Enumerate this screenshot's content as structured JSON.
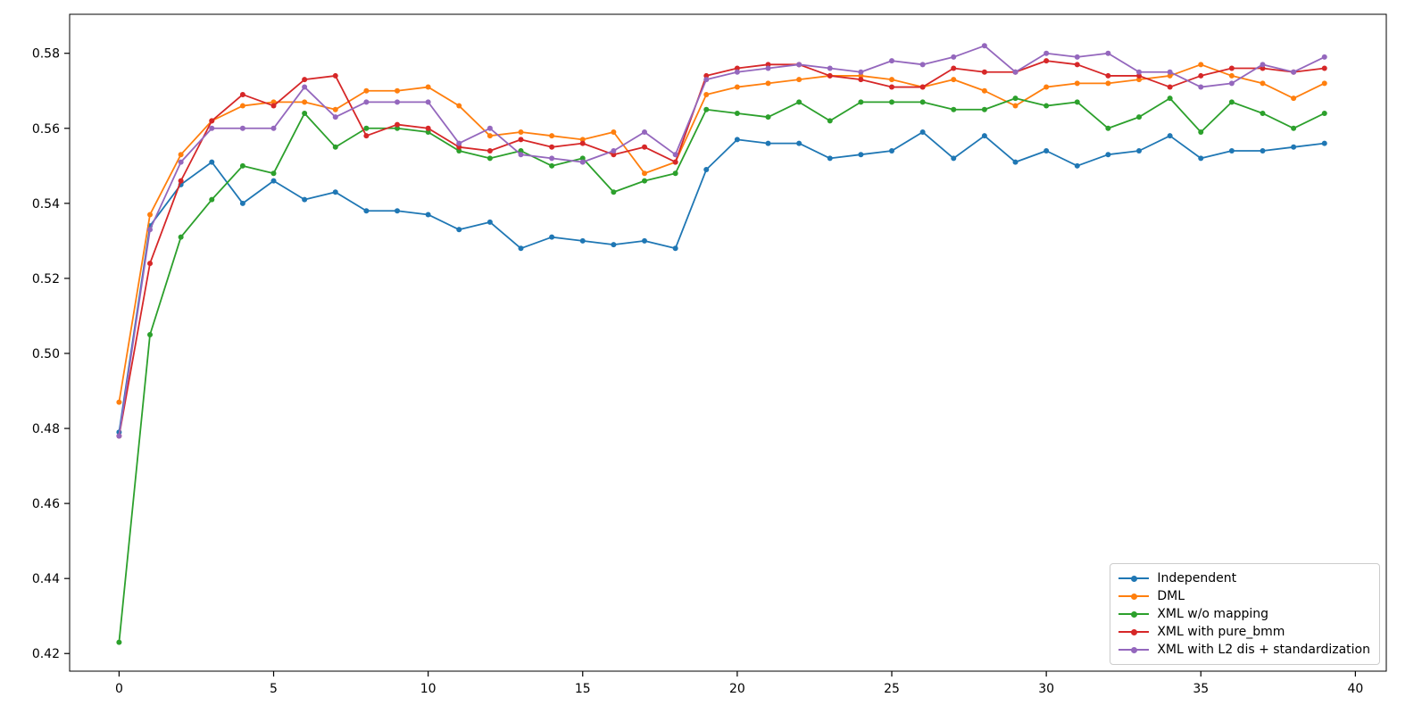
{
  "figure": {
    "background": "#ffffff",
    "axis_color": "#000000"
  },
  "chart_data": {
    "type": "line",
    "title": "",
    "xlabel": "",
    "ylabel": "",
    "grid": false,
    "marker": "circle",
    "xlim": [
      -1.6,
      41.0
    ],
    "ylim": [
      0.4153,
      0.5904
    ],
    "x_ticks": [
      0,
      5,
      10,
      15,
      20,
      25,
      30,
      35,
      40
    ],
    "y_ticks": [
      0.42,
      0.44,
      0.46,
      0.48,
      0.5,
      0.52,
      0.54,
      0.56,
      0.58
    ],
    "legend": {
      "position": "lower right"
    },
    "x": [
      0,
      1,
      2,
      3,
      4,
      5,
      6,
      7,
      8,
      9,
      10,
      11,
      12,
      13,
      14,
      15,
      16,
      17,
      18,
      19,
      20,
      21,
      22,
      23,
      24,
      25,
      26,
      27,
      28,
      29,
      30,
      31,
      32,
      33,
      34,
      35,
      36,
      37,
      38,
      39
    ],
    "series": [
      {
        "name": "Independent",
        "color": "#1f77b4",
        "values": [
          0.479,
          0.534,
          0.545,
          0.551,
          0.54,
          0.546,
          0.541,
          0.543,
          0.538,
          0.538,
          0.537,
          0.533,
          0.535,
          0.528,
          0.531,
          0.53,
          0.529,
          0.53,
          0.528,
          0.549,
          0.557,
          0.556,
          0.556,
          0.552,
          0.553,
          0.554,
          0.559,
          0.552,
          0.558,
          0.551,
          0.554,
          0.55,
          0.553,
          0.554,
          0.558,
          0.552,
          0.554,
          0.554,
          0.555,
          0.556
        ]
      },
      {
        "name": "DML",
        "color": "#ff7f0e",
        "values": [
          0.487,
          0.537,
          0.553,
          0.562,
          0.566,
          0.567,
          0.567,
          0.565,
          0.57,
          0.57,
          0.571,
          0.566,
          0.558,
          0.559,
          0.558,
          0.557,
          0.559,
          0.548,
          0.551,
          0.569,
          0.571,
          0.572,
          0.573,
          0.574,
          0.574,
          0.573,
          0.571,
          0.573,
          0.57,
          0.566,
          0.571,
          0.572,
          0.572,
          0.573,
          0.574,
          0.577,
          0.574,
          0.572,
          0.568,
          0.572
        ]
      },
      {
        "name": "XML w/o mapping",
        "color": "#2ca02c",
        "values": [
          0.423,
          0.505,
          0.531,
          0.541,
          0.55,
          0.548,
          0.564,
          0.555,
          0.56,
          0.56,
          0.559,
          0.554,
          0.552,
          0.554,
          0.55,
          0.552,
          0.543,
          0.546,
          0.548,
          0.565,
          0.564,
          0.563,
          0.567,
          0.562,
          0.567,
          0.567,
          0.567,
          0.565,
          0.565,
          0.568,
          0.566,
          0.567,
          0.56,
          0.563,
          0.568,
          0.559,
          0.567,
          0.564,
          0.56,
          0.564
        ]
      },
      {
        "name": "XML with pure_bmm",
        "color": "#d62728",
        "values": [
          0.478,
          0.524,
          0.546,
          0.562,
          0.569,
          0.566,
          0.573,
          0.574,
          0.558,
          0.561,
          0.56,
          0.555,
          0.554,
          0.557,
          0.555,
          0.556,
          0.553,
          0.555,
          0.551,
          0.574,
          0.576,
          0.577,
          0.577,
          0.574,
          0.573,
          0.571,
          0.571,
          0.576,
          0.575,
          0.575,
          0.578,
          0.577,
          0.574,
          0.574,
          0.571,
          0.574,
          0.576,
          0.576,
          0.575,
          0.576
        ]
      },
      {
        "name": "XML with L2 dis + standardization",
        "color": "#9467bd",
        "values": [
          0.478,
          0.533,
          0.551,
          0.56,
          0.56,
          0.56,
          0.571,
          0.563,
          0.567,
          0.567,
          0.567,
          0.556,
          0.56,
          0.553,
          0.552,
          0.551,
          0.554,
          0.559,
          0.553,
          0.573,
          0.575,
          0.576,
          0.577,
          0.576,
          0.575,
          0.578,
          0.577,
          0.579,
          0.582,
          0.575,
          0.58,
          0.579,
          0.58,
          0.575,
          0.575,
          0.571,
          0.572,
          0.577,
          0.575,
          0.579
        ]
      }
    ]
  }
}
